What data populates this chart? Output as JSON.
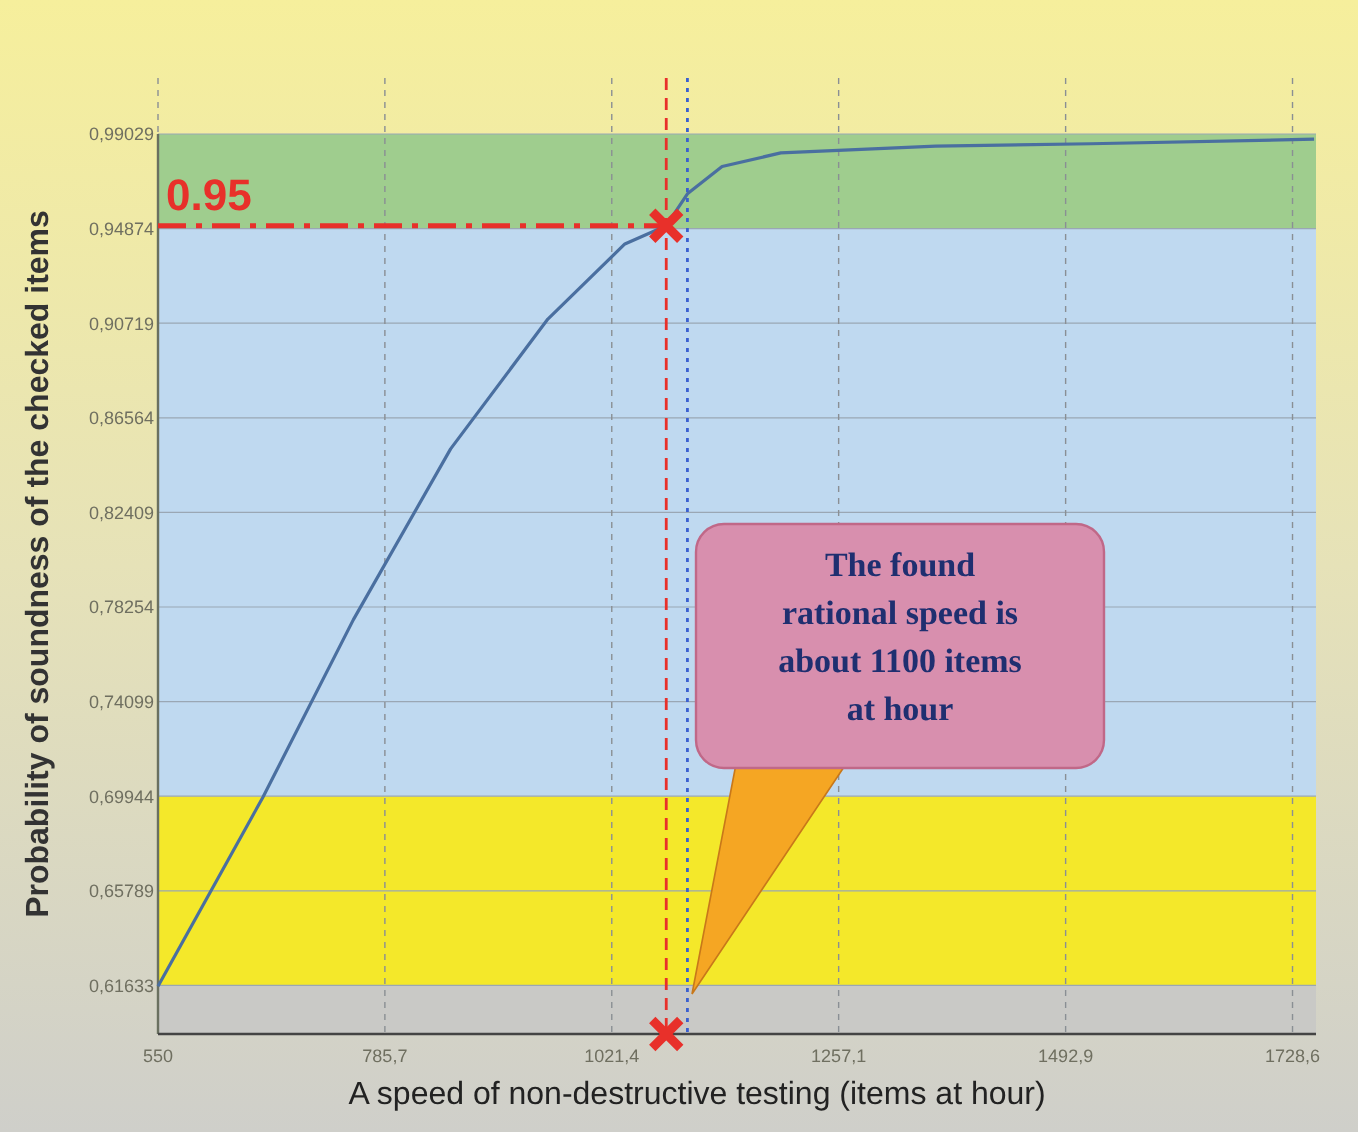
{
  "chart_data": {
    "type": "line",
    "xlabel": "A speed of non-destructive testing (items at hour)",
    "ylabel": "Probability of soundness of the checked items",
    "xlim": [
      550,
      1753
    ],
    "ylim": [
      0.595,
      0.99029
    ],
    "xticks": [
      550,
      {
        "value": 785.7,
        "label": "785,7"
      },
      {
        "value": 1021.4,
        "label": "1021,4"
      },
      {
        "value": 1257.1,
        "label": "1257,1"
      },
      {
        "value": 1492.9,
        "label": "1492,9"
      },
      {
        "value": 1728.6,
        "label": "1728,6"
      }
    ],
    "yticks": [
      {
        "value": 0.61633,
        "label": "0,61633"
      },
      {
        "value": 0.65789,
        "label": "0,65789"
      },
      {
        "value": 0.69944,
        "label": "0,69944"
      },
      {
        "value": 0.74099,
        "label": "0,74099"
      },
      {
        "value": 0.78254,
        "label": "0,78254"
      },
      {
        "value": 0.82409,
        "label": "0,82409"
      },
      {
        "value": 0.86564,
        "label": "0,86564"
      },
      {
        "value": 0.90719,
        "label": "0,90719"
      },
      {
        "value": 0.94874,
        "label": "0,94874"
      },
      {
        "value": 0.99029,
        "label": "0,99029"
      }
    ],
    "grid": true,
    "series": [
      {
        "color": "#4a6fa0",
        "marker": "none",
        "x": [
          550,
          659,
          753,
          854,
          955,
          1035,
          1078,
          1100,
          1136,
          1197,
          1358,
          1519,
          1751
        ],
        "values": [
          0.616,
          0.699,
          0.777,
          0.852,
          0.909,
          0.942,
          0.95,
          0.964,
          0.976,
          0.982,
          0.985,
          0.986,
          0.988
        ]
      },
      {
        "type": "scatter",
        "color": "#e8302a",
        "marker": "cross",
        "x": [
          1078,
          1078
        ],
        "values": [
          0.95,
          0.595
        ]
      }
    ],
    "bands": [
      {
        "axis": "y",
        "from": 0.595,
        "to": 0.61633,
        "color": "#c9c9c6"
      },
      {
        "axis": "y",
        "from": 0.61633,
        "to": 0.69944,
        "color": "#f4e82a"
      },
      {
        "axis": "y",
        "from": 0.69944,
        "to": 0.94874,
        "color": "#bfd9f0"
      },
      {
        "axis": "y",
        "from": 0.94874,
        "to": 0.99029,
        "color": "#9fcd8e"
      }
    ],
    "ref_lines": [
      {
        "axis": "y",
        "value": 0.95,
        "label": "0.95",
        "color": "#e8302a",
        "line_style": "dashdot"
      },
      {
        "axis": "x",
        "value": 1078,
        "color": "#e8302a",
        "line_style": "dashed"
      },
      {
        "axis": "x",
        "value": 1100,
        "color": "#3a5fd0",
        "line_style": "dotted"
      }
    ],
    "annotations": [
      "The found rational speed is about 1100 items at hour"
    ]
  }
}
